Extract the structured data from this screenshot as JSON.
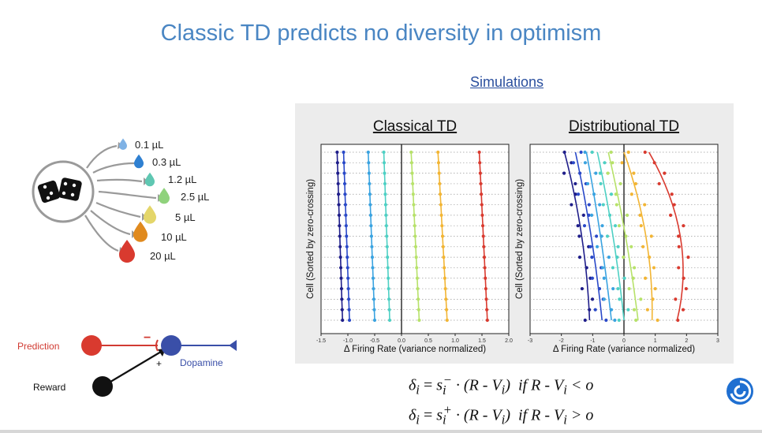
{
  "slide": {
    "title": "Classic TD predicts no diversity in optimism",
    "link": "Simulations"
  },
  "rewards": {
    "items": [
      {
        "label": "0.1 µL",
        "color": "#7fb2e5"
      },
      {
        "label": "0.3 µL",
        "color": "#2f80d1"
      },
      {
        "label": "1.2 µL",
        "color": "#5fc7b2"
      },
      {
        "label": "2.5 µL",
        "color": "#8fd27c"
      },
      {
        "label": "5 µL",
        "color": "#e4d66a"
      },
      {
        "label": "10 µL",
        "color": "#e08a1e"
      },
      {
        "label": "20 µL",
        "color": "#d93a2f"
      }
    ]
  },
  "circuit": {
    "prediction": "Prediction",
    "dopamine": "Dopamine",
    "reward": "Reward",
    "minus": "−",
    "plus": "+"
  },
  "charts": {
    "shared_ylabel": "Cell (Sorted by zero-crossing)",
    "shared_xlabel": "Δ Firing Rate (variance normalized)"
  },
  "chart_data": [
    {
      "type": "line",
      "title": "Classical TD",
      "xlabel": "Δ Firing Rate (variance normalized)",
      "ylabel": "Cell (Sorted by zero-crossing)",
      "xlim": [
        -1.5,
        2.0
      ],
      "xticks": [
        "-1.5",
        "-1.0",
        "-0.5",
        "0.0",
        "0.5",
        "1.0",
        "1.5",
        "2.0"
      ],
      "cells": 17,
      "series": [
        {
          "color": "#1f1e8a",
          "x_top": -1.2,
          "x_bottom": -1.1
        },
        {
          "color": "#2a49c8",
          "x_top": -1.08,
          "x_bottom": -0.97
        },
        {
          "color": "#3aa3e0",
          "x_top": -0.62,
          "x_bottom": -0.5
        },
        {
          "color": "#4ed0c4",
          "x_top": -0.33,
          "x_bottom": -0.22
        },
        {
          "color": "#b7e26a",
          "x_top": 0.18,
          "x_bottom": 0.33
        },
        {
          "color": "#f2b534",
          "x_top": 0.68,
          "x_bottom": 0.85
        },
        {
          "color": "#d93a2f",
          "x_top": 1.45,
          "x_bottom": 1.6
        }
      ]
    },
    {
      "type": "scatter",
      "title": "Distributional TD",
      "xlabel": "Δ Firing Rate (variance normalized)",
      "ylabel": "Cell (Sorted by zero-crossing)",
      "xlim": [
        -3,
        3
      ],
      "xticks": [
        "-3",
        "-2",
        "-1",
        "0",
        "1",
        "2",
        "3"
      ],
      "cells": 17,
      "series": [
        {
          "color": "#1f1e8a",
          "x_top": -1.9,
          "x_mid": -1.35,
          "x_bottom": -1.1
        },
        {
          "color": "#2a49c8",
          "x_top": -1.55,
          "x_mid": -1.05,
          "x_bottom": -0.7
        },
        {
          "color": "#3aa3e0",
          "x_top": -1.2,
          "x_mid": -0.75,
          "x_bottom": -0.4
        },
        {
          "color": "#4ed0c4",
          "x_top": -0.85,
          "x_mid": -0.35,
          "x_bottom": 0.0
        },
        {
          "color": "#b7e26a",
          "x_top": -0.5,
          "x_mid": 0.05,
          "x_bottom": 0.45
        },
        {
          "color": "#f2b534",
          "x_top": 0.0,
          "x_mid": 0.7,
          "x_bottom": 0.9
        },
        {
          "color": "#d93a2f",
          "x_top": 0.8,
          "x_mid": 1.8,
          "x_bottom": 1.7
        }
      ]
    }
  ],
  "equations": {
    "delta": "δ",
    "i": "i",
    "eq1_s": "s",
    "eq1_sup": "−",
    "eq2_sup": "+",
    "body": "· (R - V",
    "close": ")",
    "cond1": "if R - V",
    "cond1_op": " < o",
    "cond2_op": " > o"
  }
}
